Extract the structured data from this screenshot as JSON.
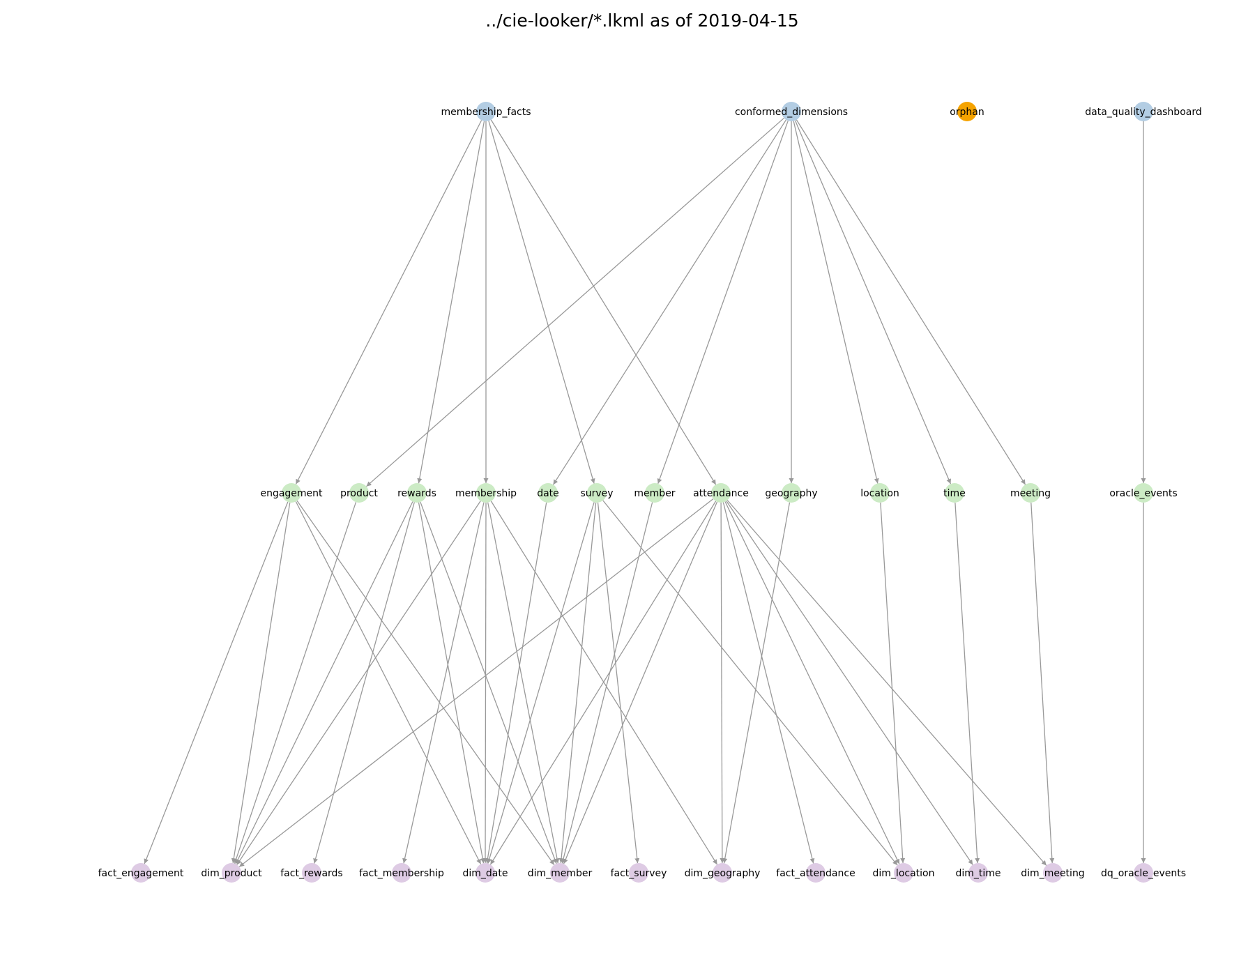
{
  "title": "../cie-looker/*.lkml as of 2019-04-15",
  "colors": {
    "model": "#b3cde3",
    "orphan": "#f5a300",
    "explore": "#ccebc5",
    "view": "#decbe4",
    "edge": "#999999",
    "background": "#ffffff"
  },
  "nodes": [
    {
      "id": "membership_facts",
      "label": "membership_facts",
      "kind": "model"
    },
    {
      "id": "conformed_dimensions",
      "label": "conformed_dimensions",
      "kind": "model"
    },
    {
      "id": "orphan",
      "label": "orphan",
      "kind": "orphan"
    },
    {
      "id": "data_quality_dashboard",
      "label": "data_quality_dashboard",
      "kind": "model"
    },
    {
      "id": "engagement",
      "label": "engagement",
      "kind": "explore"
    },
    {
      "id": "product",
      "label": "product",
      "kind": "explore"
    },
    {
      "id": "rewards",
      "label": "rewards",
      "kind": "explore"
    },
    {
      "id": "membership",
      "label": "membership",
      "kind": "explore"
    },
    {
      "id": "date",
      "label": "date",
      "kind": "explore"
    },
    {
      "id": "survey",
      "label": "survey",
      "kind": "explore"
    },
    {
      "id": "member",
      "label": "member",
      "kind": "explore"
    },
    {
      "id": "attendance",
      "label": "attendance",
      "kind": "explore"
    },
    {
      "id": "geography",
      "label": "geography",
      "kind": "explore"
    },
    {
      "id": "location",
      "label": "location",
      "kind": "explore"
    },
    {
      "id": "time",
      "label": "time",
      "kind": "explore"
    },
    {
      "id": "meeting",
      "label": "meeting",
      "kind": "explore"
    },
    {
      "id": "oracle_events",
      "label": "oracle_events",
      "kind": "explore"
    },
    {
      "id": "fact_engagement",
      "label": "fact_engagement",
      "kind": "view"
    },
    {
      "id": "dim_product",
      "label": "dim_product",
      "kind": "view"
    },
    {
      "id": "fact_rewards",
      "label": "fact_rewards",
      "kind": "view"
    },
    {
      "id": "fact_membership",
      "label": "fact_membership",
      "kind": "view"
    },
    {
      "id": "dim_date",
      "label": "dim_date",
      "kind": "view"
    },
    {
      "id": "dim_member",
      "label": "dim_member",
      "kind": "view"
    },
    {
      "id": "fact_survey",
      "label": "fact_survey",
      "kind": "view"
    },
    {
      "id": "dim_geography",
      "label": "dim_geography",
      "kind": "view"
    },
    {
      "id": "fact_attendance",
      "label": "fact_attendance",
      "kind": "view"
    },
    {
      "id": "dim_location",
      "label": "dim_location",
      "kind": "view"
    },
    {
      "id": "dim_time",
      "label": "dim_time",
      "kind": "view"
    },
    {
      "id": "dim_meeting",
      "label": "dim_meeting",
      "kind": "view"
    },
    {
      "id": "dq_oracle_events",
      "label": "dq_oracle_events",
      "kind": "view"
    }
  ],
  "edges": [
    [
      "membership_facts",
      "engagement"
    ],
    [
      "membership_facts",
      "rewards"
    ],
    [
      "membership_facts",
      "membership"
    ],
    [
      "membership_facts",
      "survey"
    ],
    [
      "membership_facts",
      "attendance"
    ],
    [
      "conformed_dimensions",
      "product"
    ],
    [
      "conformed_dimensions",
      "date"
    ],
    [
      "conformed_dimensions",
      "member"
    ],
    [
      "conformed_dimensions",
      "geography"
    ],
    [
      "conformed_dimensions",
      "location"
    ],
    [
      "conformed_dimensions",
      "time"
    ],
    [
      "conformed_dimensions",
      "meeting"
    ],
    [
      "data_quality_dashboard",
      "oracle_events"
    ],
    [
      "engagement",
      "fact_engagement"
    ],
    [
      "engagement",
      "dim_product"
    ],
    [
      "engagement",
      "dim_date"
    ],
    [
      "engagement",
      "dim_member"
    ],
    [
      "product",
      "dim_product"
    ],
    [
      "rewards",
      "dim_product"
    ],
    [
      "rewards",
      "fact_rewards"
    ],
    [
      "rewards",
      "dim_date"
    ],
    [
      "rewards",
      "dim_member"
    ],
    [
      "membership",
      "dim_product"
    ],
    [
      "membership",
      "fact_membership"
    ],
    [
      "membership",
      "dim_date"
    ],
    [
      "membership",
      "dim_member"
    ],
    [
      "membership",
      "dim_geography"
    ],
    [
      "date",
      "dim_date"
    ],
    [
      "survey",
      "dim_date"
    ],
    [
      "survey",
      "dim_member"
    ],
    [
      "survey",
      "fact_survey"
    ],
    [
      "survey",
      "dim_location"
    ],
    [
      "member",
      "dim_member"
    ],
    [
      "attendance",
      "dim_product"
    ],
    [
      "attendance",
      "dim_date"
    ],
    [
      "attendance",
      "dim_member"
    ],
    [
      "attendance",
      "dim_geography"
    ],
    [
      "attendance",
      "fact_attendance"
    ],
    [
      "attendance",
      "dim_location"
    ],
    [
      "attendance",
      "dim_time"
    ],
    [
      "attendance",
      "dim_meeting"
    ],
    [
      "geography",
      "dim_geography"
    ],
    [
      "location",
      "dim_location"
    ],
    [
      "time",
      "dim_time"
    ],
    [
      "meeting",
      "dim_meeting"
    ],
    [
      "oracle_events",
      "dq_oracle_events"
    ]
  ]
}
